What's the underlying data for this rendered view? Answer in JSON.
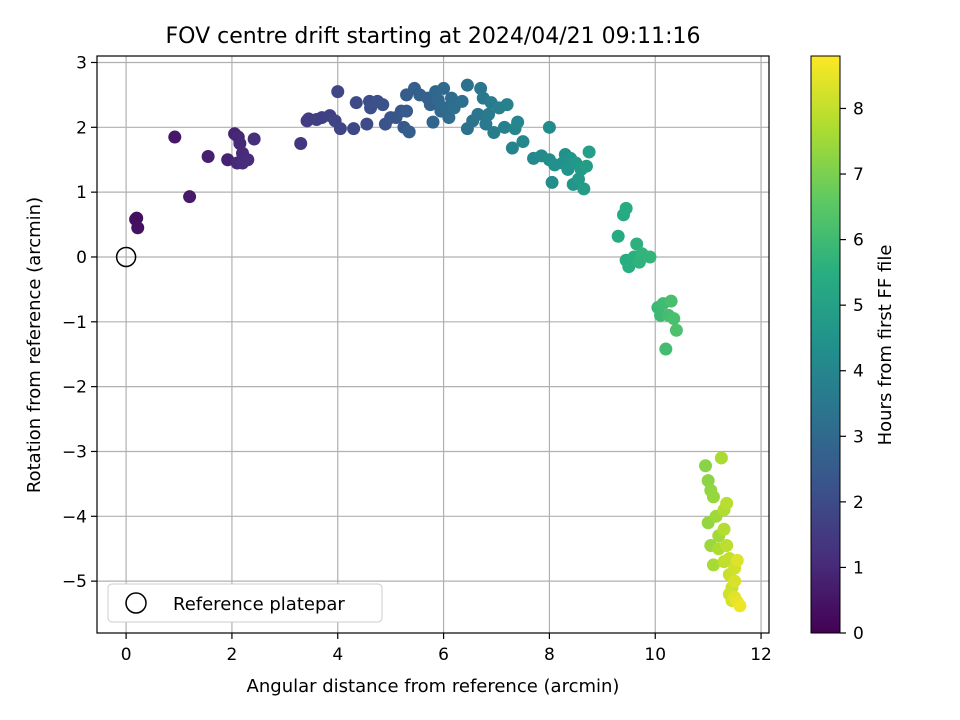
{
  "chart_data": {
    "type": "scatter",
    "title": "FOV centre drift starting at 2024/04/21 09:11:16",
    "xlabel": "Angular distance from reference (arcmin)",
    "ylabel": "Rotation from reference (arcmin)",
    "xlim": [
      -0.55,
      12.15
    ],
    "ylim": [
      -5.8,
      3.1
    ],
    "xticks": [
      0,
      2,
      4,
      6,
      8,
      10,
      12
    ],
    "yticks": [
      -5,
      -4,
      -3,
      -2,
      -1,
      0,
      1,
      2,
      3
    ],
    "xtick_labels": [
      "0",
      "2",
      "4",
      "6",
      "8",
      "10",
      "12"
    ],
    "ytick_labels": [
      "−5",
      "−4",
      "−3",
      "−2",
      "−1",
      "0",
      "1",
      "2",
      "3"
    ],
    "grid": true,
    "legend": {
      "position": "lower-left",
      "entries": [
        "Reference platepar"
      ]
    },
    "reference_point": {
      "x": 0,
      "y": 0,
      "marker": "open-circle",
      "edge_color": "#000000"
    },
    "colorbar": {
      "label": "Hours from first FF file",
      "range": [
        0,
        8.8
      ],
      "ticks": [
        0,
        1,
        2,
        3,
        4,
        5,
        6,
        7,
        8
      ],
      "tick_labels": [
        "0",
        "1",
        "2",
        "3",
        "4",
        "5",
        "6",
        "7",
        "8"
      ],
      "colormap": "viridis"
    },
    "points": [
      {
        "x": 0.18,
        "y": 0.58,
        "h": 0.3
      },
      {
        "x": 0.2,
        "y": 0.6,
        "h": 0.35
      },
      {
        "x": 0.22,
        "y": 0.45,
        "h": 0.4
      },
      {
        "x": 0.92,
        "y": 1.85,
        "h": 0.55
      },
      {
        "x": 1.2,
        "y": 0.93,
        "h": 0.65
      },
      {
        "x": 1.55,
        "y": 1.55,
        "h": 0.75
      },
      {
        "x": 1.92,
        "y": 1.5,
        "h": 0.85
      },
      {
        "x": 2.05,
        "y": 1.9,
        "h": 0.9
      },
      {
        "x": 2.12,
        "y": 1.85,
        "h": 0.95
      },
      {
        "x": 2.1,
        "y": 1.45,
        "h": 1.0
      },
      {
        "x": 2.15,
        "y": 1.75,
        "h": 1.0
      },
      {
        "x": 2.2,
        "y": 1.6,
        "h": 1.05
      },
      {
        "x": 2.2,
        "y": 1.45,
        "h": 1.1
      },
      {
        "x": 2.3,
        "y": 1.5,
        "h": 1.1
      },
      {
        "x": 2.42,
        "y": 1.82,
        "h": 1.15
      },
      {
        "x": 3.3,
        "y": 1.75,
        "h": 1.4
      },
      {
        "x": 3.42,
        "y": 2.1,
        "h": 1.5
      },
      {
        "x": 3.45,
        "y": 2.13,
        "h": 1.55
      },
      {
        "x": 3.6,
        "y": 2.12,
        "h": 1.6
      },
      {
        "x": 3.7,
        "y": 2.15,
        "h": 1.65
      },
      {
        "x": 3.85,
        "y": 2.18,
        "h": 1.7
      },
      {
        "x": 3.95,
        "y": 2.1,
        "h": 1.75
      },
      {
        "x": 4.0,
        "y": 2.55,
        "h": 1.8
      },
      {
        "x": 4.05,
        "y": 1.98,
        "h": 1.85
      },
      {
        "x": 4.3,
        "y": 1.98,
        "h": 1.9
      },
      {
        "x": 4.35,
        "y": 2.38,
        "h": 1.95
      },
      {
        "x": 4.55,
        "y": 2.05,
        "h": 2.0
      },
      {
        "x": 4.6,
        "y": 2.4,
        "h": 2.05
      },
      {
        "x": 4.62,
        "y": 2.3,
        "h": 2.1
      },
      {
        "x": 4.75,
        "y": 2.4,
        "h": 2.15
      },
      {
        "x": 4.85,
        "y": 2.35,
        "h": 2.2
      },
      {
        "x": 4.9,
        "y": 2.05,
        "h": 2.25
      },
      {
        "x": 5.0,
        "y": 2.15,
        "h": 2.3
      },
      {
        "x": 5.1,
        "y": 2.15,
        "h": 2.35
      },
      {
        "x": 5.2,
        "y": 2.25,
        "h": 2.4
      },
      {
        "x": 5.25,
        "y": 2.0,
        "h": 2.45
      },
      {
        "x": 5.3,
        "y": 2.25,
        "h": 2.5
      },
      {
        "x": 5.3,
        "y": 2.5,
        "h": 2.55
      },
      {
        "x": 5.35,
        "y": 1.93,
        "h": 2.6
      },
      {
        "x": 5.45,
        "y": 2.6,
        "h": 2.65
      },
      {
        "x": 5.55,
        "y": 2.5,
        "h": 2.7
      },
      {
        "x": 5.7,
        "y": 2.45,
        "h": 2.75
      },
      {
        "x": 5.75,
        "y": 2.35,
        "h": 2.8
      },
      {
        "x": 5.8,
        "y": 2.08,
        "h": 2.85
      },
      {
        "x": 5.85,
        "y": 2.55,
        "h": 2.9
      },
      {
        "x": 5.9,
        "y": 2.42,
        "h": 2.95
      },
      {
        "x": 5.95,
        "y": 2.25,
        "h": 3.0
      },
      {
        "x": 6.0,
        "y": 2.6,
        "h": 3.0
      },
      {
        "x": 6.05,
        "y": 2.3,
        "h": 3.05
      },
      {
        "x": 6.1,
        "y": 2.15,
        "h": 3.1
      },
      {
        "x": 6.15,
        "y": 2.45,
        "h": 3.1
      },
      {
        "x": 6.2,
        "y": 2.3,
        "h": 3.15
      },
      {
        "x": 6.35,
        "y": 2.4,
        "h": 3.2
      },
      {
        "x": 6.45,
        "y": 2.65,
        "h": 3.25
      },
      {
        "x": 6.45,
        "y": 1.98,
        "h": 3.3
      },
      {
        "x": 6.55,
        "y": 2.1,
        "h": 3.35
      },
      {
        "x": 6.65,
        "y": 2.2,
        "h": 3.4
      },
      {
        "x": 6.7,
        "y": 2.6,
        "h": 3.45
      },
      {
        "x": 6.75,
        "y": 2.45,
        "h": 3.5
      },
      {
        "x": 6.8,
        "y": 2.05,
        "h": 3.55
      },
      {
        "x": 6.85,
        "y": 2.2,
        "h": 3.6
      },
      {
        "x": 6.9,
        "y": 2.38,
        "h": 3.65
      },
      {
        "x": 6.95,
        "y": 1.92,
        "h": 3.7
      },
      {
        "x": 7.05,
        "y": 2.3,
        "h": 3.75
      },
      {
        "x": 7.15,
        "y": 2.0,
        "h": 3.8
      },
      {
        "x": 7.2,
        "y": 2.35,
        "h": 3.85
      },
      {
        "x": 7.3,
        "y": 1.68,
        "h": 3.9
      },
      {
        "x": 7.35,
        "y": 1.98,
        "h": 3.95
      },
      {
        "x": 7.4,
        "y": 2.08,
        "h": 4.0
      },
      {
        "x": 7.5,
        "y": 1.78,
        "h": 4.05
      },
      {
        "x": 7.7,
        "y": 1.52,
        "h": 4.1
      },
      {
        "x": 7.85,
        "y": 1.56,
        "h": 4.15
      },
      {
        "x": 8.0,
        "y": 2.0,
        "h": 4.2
      },
      {
        "x": 8.0,
        "y": 1.5,
        "h": 4.25
      },
      {
        "x": 8.05,
        "y": 1.15,
        "h": 4.3
      },
      {
        "x": 8.1,
        "y": 1.42,
        "h": 4.35
      },
      {
        "x": 8.25,
        "y": 1.45,
        "h": 4.4
      },
      {
        "x": 8.3,
        "y": 1.58,
        "h": 4.45
      },
      {
        "x": 8.35,
        "y": 1.35,
        "h": 4.5
      },
      {
        "x": 8.4,
        "y": 1.52,
        "h": 4.55
      },
      {
        "x": 8.45,
        "y": 1.12,
        "h": 4.6
      },
      {
        "x": 8.5,
        "y": 1.45,
        "h": 4.65
      },
      {
        "x": 8.55,
        "y": 1.2,
        "h": 4.7
      },
      {
        "x": 8.6,
        "y": 1.35,
        "h": 4.75
      },
      {
        "x": 8.65,
        "y": 1.05,
        "h": 4.8
      },
      {
        "x": 8.7,
        "y": 1.4,
        "h": 4.85
      },
      {
        "x": 8.75,
        "y": 1.62,
        "h": 4.9
      },
      {
        "x": 9.3,
        "y": 0.32,
        "h": 5.3
      },
      {
        "x": 9.4,
        "y": 0.65,
        "h": 5.35
      },
      {
        "x": 9.45,
        "y": 0.75,
        "h": 5.4
      },
      {
        "x": 9.45,
        "y": -0.05,
        "h": 5.45
      },
      {
        "x": 9.5,
        "y": -0.15,
        "h": 5.5
      },
      {
        "x": 9.6,
        "y": 0.0,
        "h": 5.55
      },
      {
        "x": 9.65,
        "y": 0.2,
        "h": 5.6
      },
      {
        "x": 9.7,
        "y": -0.08,
        "h": 5.65
      },
      {
        "x": 9.75,
        "y": 0.05,
        "h": 5.7
      },
      {
        "x": 9.9,
        "y": 0.0,
        "h": 5.75
      },
      {
        "x": 10.05,
        "y": -0.78,
        "h": 5.9
      },
      {
        "x": 10.1,
        "y": -0.9,
        "h": 5.95
      },
      {
        "x": 10.15,
        "y": -0.72,
        "h": 6.0
      },
      {
        "x": 10.2,
        "y": -1.42,
        "h": 6.05
      },
      {
        "x": 10.25,
        "y": -0.9,
        "h": 6.1
      },
      {
        "x": 10.3,
        "y": -0.68,
        "h": 6.15
      },
      {
        "x": 10.35,
        "y": -0.95,
        "h": 6.2
      },
      {
        "x": 10.4,
        "y": -1.13,
        "h": 6.25
      },
      {
        "x": 10.95,
        "y": -3.22,
        "h": 7.2
      },
      {
        "x": 11.0,
        "y": -3.45,
        "h": 7.25
      },
      {
        "x": 11.05,
        "y": -3.6,
        "h": 7.3
      },
      {
        "x": 11.0,
        "y": -4.1,
        "h": 7.35
      },
      {
        "x": 11.1,
        "y": -3.7,
        "h": 7.4
      },
      {
        "x": 11.05,
        "y": -4.45,
        "h": 7.45
      },
      {
        "x": 11.15,
        "y": -4.0,
        "h": 7.5
      },
      {
        "x": 11.2,
        "y": -4.3,
        "h": 7.55
      },
      {
        "x": 11.1,
        "y": -4.75,
        "h": 7.6
      },
      {
        "x": 11.25,
        "y": -3.1,
        "h": 7.65
      },
      {
        "x": 11.2,
        "y": -4.5,
        "h": 7.7
      },
      {
        "x": 11.3,
        "y": -3.9,
        "h": 7.75
      },
      {
        "x": 11.3,
        "y": -4.2,
        "h": 7.8
      },
      {
        "x": 11.35,
        "y": -3.8,
        "h": 7.85
      },
      {
        "x": 11.35,
        "y": -4.45,
        "h": 7.9
      },
      {
        "x": 11.3,
        "y": -4.7,
        "h": 7.95
      },
      {
        "x": 11.4,
        "y": -4.65,
        "h": 8.0
      },
      {
        "x": 11.4,
        "y": -4.9,
        "h": 8.05
      },
      {
        "x": 11.45,
        "y": -5.1,
        "h": 8.1
      },
      {
        "x": 11.4,
        "y": -5.2,
        "h": 8.15
      },
      {
        "x": 11.5,
        "y": -4.8,
        "h": 8.2
      },
      {
        "x": 11.45,
        "y": -5.3,
        "h": 8.25
      },
      {
        "x": 11.5,
        "y": -5.0,
        "h": 8.3
      },
      {
        "x": 11.55,
        "y": -4.68,
        "h": 8.35
      },
      {
        "x": 11.5,
        "y": -5.25,
        "h": 8.4
      },
      {
        "x": 11.55,
        "y": -5.32,
        "h": 8.5
      },
      {
        "x": 11.6,
        "y": -5.38,
        "h": 8.6
      }
    ]
  }
}
